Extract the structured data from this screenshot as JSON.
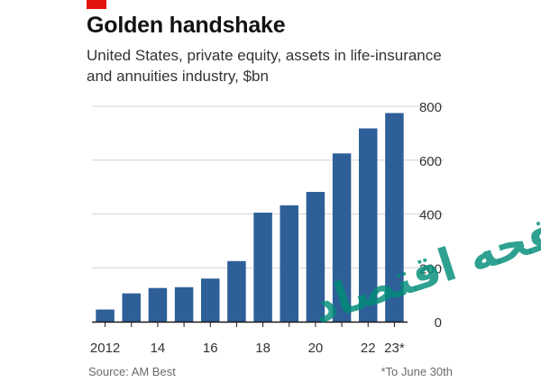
{
  "header": {
    "title": "Golden handshake",
    "subtitle": "United States, private equity, assets in life-insurance and annuities industry, $bn"
  },
  "footer": {
    "source": "Source: AM Best",
    "footnote": "*To June 30th"
  },
  "watermark": {
    "text": "صفحه اقتصاد"
  },
  "colors": {
    "bar": "#2f5f98",
    "accent": "#e3120b",
    "grid": "#d4d4d4",
    "axis": "#1a1a1a",
    "text": "#333333"
  },
  "chart_data": {
    "type": "bar",
    "title": "Golden handshake",
    "subtitle": "United States, private equity, assets in life-insurance and annuities industry, $bn",
    "categories": [
      "2012",
      "2013",
      "2014",
      "2015",
      "2016",
      "2017",
      "2018",
      "2019",
      "2020",
      "2021",
      "2022",
      "2023*"
    ],
    "values": [
      45,
      105,
      125,
      128,
      160,
      225,
      405,
      432,
      482,
      625,
      718,
      775
    ],
    "x_tick_labels": [
      {
        "index": 0,
        "label": "2012"
      },
      {
        "index": 2,
        "label": "14"
      },
      {
        "index": 4,
        "label": "16"
      },
      {
        "index": 6,
        "label": "18"
      },
      {
        "index": 8,
        "label": "20"
      },
      {
        "index": 10,
        "label": "22"
      },
      {
        "index": 11,
        "label": "23*"
      }
    ],
    "y_ticks": [
      0,
      200,
      400,
      600,
      800
    ],
    "ylim": [
      0,
      800
    ],
    "y_axis_position": "right",
    "grid": true
  }
}
